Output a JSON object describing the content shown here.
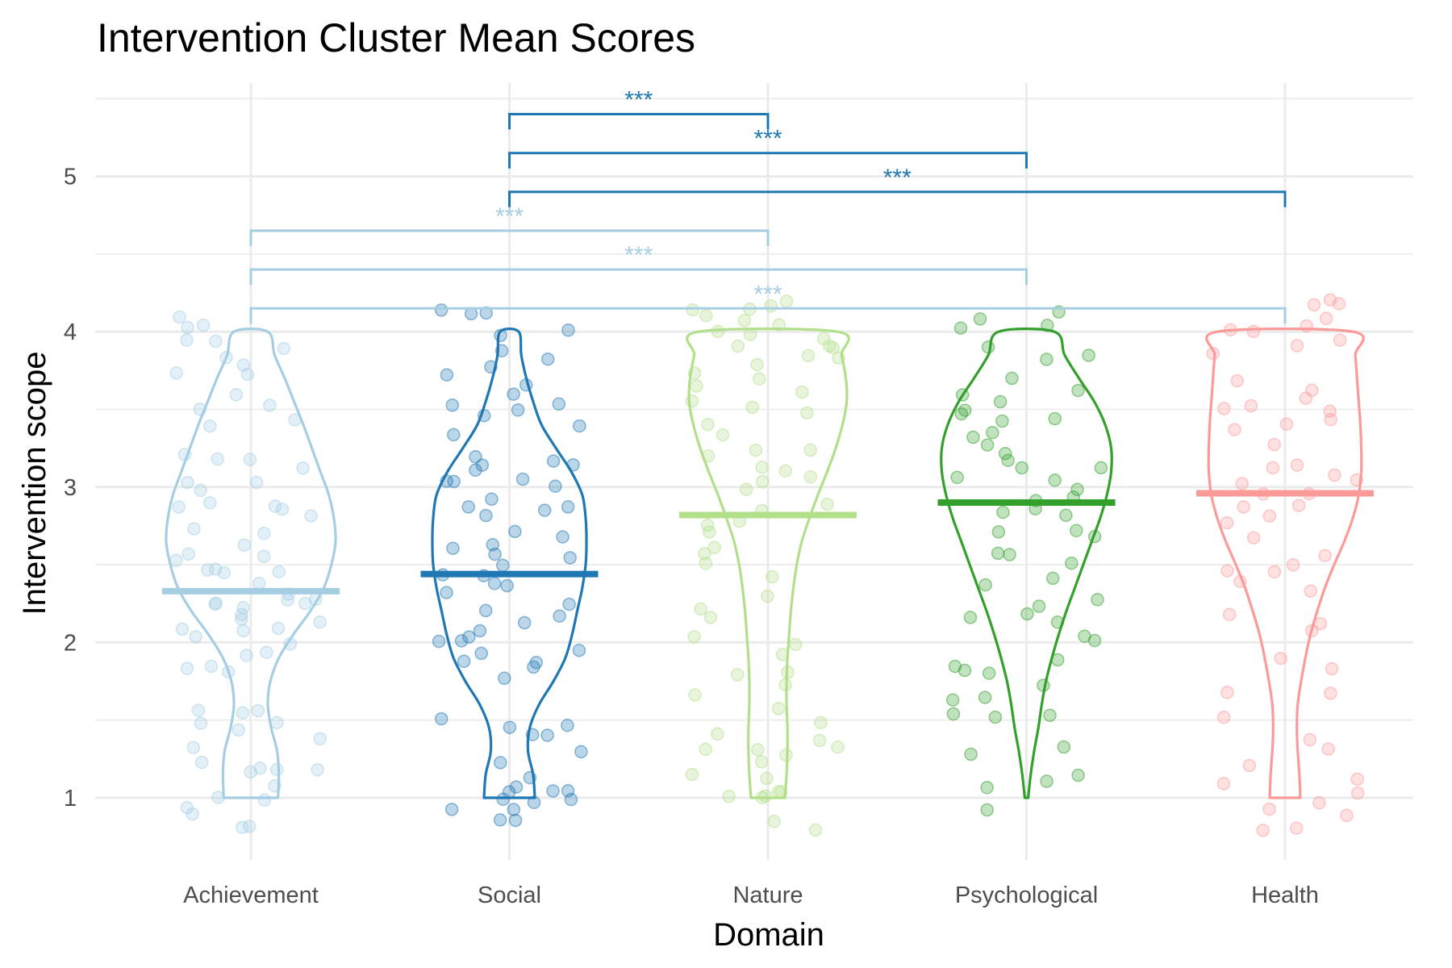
{
  "chart_data": {
    "type": "violin",
    "title": "Intervention Cluster Mean Scores",
    "xlabel": "Domain",
    "ylabel": "Intervention scope",
    "categories": [
      "Achievement",
      "Social",
      "Nature",
      "Psychological",
      "Health"
    ],
    "ylim": [
      0.6,
      5.6
    ],
    "yticks": [
      1,
      2,
      3,
      4,
      5
    ],
    "grid": true,
    "legend": "none",
    "series": [
      {
        "category": "Achievement",
        "color": "#a6cee3",
        "mean": 2.33,
        "point_alpha": 0.3,
        "density": [
          [
            1.0,
            0.32
          ],
          [
            1.15,
            0.33
          ],
          [
            1.3,
            0.31
          ],
          [
            1.45,
            0.24
          ],
          [
            1.6,
            0.2
          ],
          [
            1.75,
            0.23
          ],
          [
            1.9,
            0.33
          ],
          [
            2.05,
            0.5
          ],
          [
            2.2,
            0.7
          ],
          [
            2.35,
            0.86
          ],
          [
            2.5,
            0.95
          ],
          [
            2.65,
            1.0
          ],
          [
            2.8,
            0.98
          ],
          [
            2.95,
            0.92
          ],
          [
            3.1,
            0.82
          ],
          [
            3.25,
            0.72
          ],
          [
            3.4,
            0.62
          ],
          [
            3.55,
            0.51
          ],
          [
            3.7,
            0.4
          ],
          [
            3.85,
            0.28
          ],
          [
            4.0,
            0.2
          ]
        ],
        "points": [
          0.82,
          0.88,
          0.81,
          0.96,
          0.98,
          1.02,
          1.05,
          1.15,
          1.16,
          1.19,
          1.2,
          1.21,
          1.32,
          1.36,
          1.44,
          1.47,
          1.51,
          1.53,
          1.55,
          1.58,
          1.8,
          1.86,
          1.87,
          1.9,
          1.93,
          2.0,
          2.02,
          2.05,
          2.08,
          2.1,
          2.12,
          2.15,
          2.2,
          2.22,
          2.23,
          2.25,
          2.27,
          2.28,
          2.3,
          2.32,
          2.35,
          2.44,
          2.46,
          2.47,
          2.5,
          2.52,
          2.55,
          2.6,
          2.65,
          2.7,
          2.75,
          2.8,
          2.85,
          2.87,
          2.9,
          2.92,
          2.95,
          3.0,
          3.05,
          3.1,
          3.15,
          3.18,
          3.2,
          3.38,
          3.41,
          3.47,
          3.5,
          3.57,
          3.72,
          3.75,
          3.8,
          3.86,
          3.9,
          3.93,
          3.97,
          4.0,
          4.03,
          4.1
        ]
      },
      {
        "category": "Social",
        "color": "#1f78b4",
        "mean": 2.44,
        "point_alpha": 0.3,
        "density": [
          [
            1.0,
            0.3
          ],
          [
            1.15,
            0.28
          ],
          [
            1.3,
            0.22
          ],
          [
            1.45,
            0.24
          ],
          [
            1.6,
            0.35
          ],
          [
            1.75,
            0.52
          ],
          [
            1.9,
            0.66
          ],
          [
            2.05,
            0.74
          ],
          [
            2.2,
            0.8
          ],
          [
            2.35,
            0.86
          ],
          [
            2.5,
            0.9
          ],
          [
            2.65,
            0.91
          ],
          [
            2.8,
            0.9
          ],
          [
            2.95,
            0.86
          ],
          [
            3.1,
            0.73
          ],
          [
            3.25,
            0.55
          ],
          [
            3.4,
            0.38
          ],
          [
            3.55,
            0.28
          ],
          [
            3.7,
            0.2
          ],
          [
            3.85,
            0.14
          ],
          [
            4.0,
            0.11
          ]
        ],
        "points": [
          0.85,
          0.88,
          0.92,
          0.95,
          0.97,
          1.0,
          1.02,
          1.04,
          1.05,
          1.07,
          1.1,
          1.15,
          1.2,
          1.3,
          1.4,
          1.42,
          1.45,
          1.48,
          1.5,
          1.8,
          1.82,
          1.85,
          1.88,
          1.9,
          1.95,
          2.0,
          2.02,
          2.05,
          2.1,
          2.12,
          2.15,
          2.2,
          2.25,
          2.3,
          2.35,
          2.38,
          2.4,
          2.45,
          2.5,
          2.52,
          2.55,
          2.6,
          2.62,
          2.65,
          2.7,
          2.8,
          2.85,
          2.88,
          2.9,
          2.95,
          3.0,
          3.02,
          3.05,
          3.08,
          3.1,
          3.12,
          3.15,
          3.18,
          3.2,
          3.35,
          3.4,
          3.45,
          3.5,
          3.52,
          3.55,
          3.6,
          3.65,
          3.7,
          3.8,
          3.85,
          3.9,
          3.95,
          4.0,
          4.1,
          4.13,
          4.15
        ]
      },
      {
        "category": "Nature",
        "color": "#b2df8a",
        "mean": 2.82,
        "point_alpha": 0.3,
        "density": [
          [
            1.0,
            0.2
          ],
          [
            1.15,
            0.22
          ],
          [
            1.3,
            0.23
          ],
          [
            1.45,
            0.23
          ],
          [
            1.6,
            0.22
          ],
          [
            1.75,
            0.22
          ],
          [
            1.9,
            0.23
          ],
          [
            2.05,
            0.25
          ],
          [
            2.2,
            0.27
          ],
          [
            2.35,
            0.3
          ],
          [
            2.5,
            0.34
          ],
          [
            2.65,
            0.4
          ],
          [
            2.8,
            0.49
          ],
          [
            2.95,
            0.59
          ],
          [
            3.1,
            0.7
          ],
          [
            3.25,
            0.8
          ],
          [
            3.4,
            0.88
          ],
          [
            3.55,
            0.93
          ],
          [
            3.7,
            0.92
          ],
          [
            3.85,
            0.87
          ],
          [
            4.0,
            0.82
          ]
        ],
        "points": [
          0.8,
          0.82,
          0.98,
          1.0,
          1.01,
          1.02,
          1.05,
          1.1,
          1.15,
          1.2,
          1.25,
          1.3,
          1.32,
          1.35,
          1.38,
          1.4,
          1.5,
          1.6,
          1.65,
          1.7,
          1.8,
          1.82,
          1.9,
          2.0,
          2.02,
          2.15,
          2.2,
          2.3,
          2.45,
          2.5,
          2.55,
          2.6,
          2.7,
          2.75,
          2.8,
          2.85,
          2.9,
          3.0,
          3.02,
          3.05,
          3.1,
          3.15,
          3.2,
          3.22,
          3.25,
          3.35,
          3.4,
          3.45,
          3.5,
          3.55,
          3.6,
          3.65,
          3.7,
          3.75,
          3.8,
          3.82,
          3.85,
          3.88,
          3.9,
          3.92,
          3.95,
          4.0,
          4.02,
          4.05,
          4.08,
          4.1,
          4.12,
          4.15,
          4.17,
          4.18
        ]
      },
      {
        "category": "Psychological",
        "color": "#33a02c",
        "mean": 2.9,
        "point_alpha": 0.3,
        "density": [
          [
            1.0,
            0.02
          ],
          [
            1.15,
            0.05
          ],
          [
            1.3,
            0.09
          ],
          [
            1.45,
            0.14
          ],
          [
            1.6,
            0.18
          ],
          [
            1.75,
            0.23
          ],
          [
            1.9,
            0.3
          ],
          [
            2.05,
            0.38
          ],
          [
            2.2,
            0.47
          ],
          [
            2.35,
            0.57
          ],
          [
            2.5,
            0.67
          ],
          [
            2.65,
            0.77
          ],
          [
            2.8,
            0.87
          ],
          [
            2.95,
            0.95
          ],
          [
            3.1,
            1.0
          ],
          [
            3.25,
            1.0
          ],
          [
            3.4,
            0.93
          ],
          [
            3.55,
            0.8
          ],
          [
            3.7,
            0.62
          ],
          [
            3.85,
            0.45
          ],
          [
            4.0,
            0.33
          ]
        ],
        "points": [
          0.95,
          1.08,
          1.1,
          1.12,
          1.25,
          1.35,
          1.5,
          1.52,
          1.55,
          1.6,
          1.65,
          1.7,
          1.8,
          1.82,
          1.85,
          1.9,
          2.0,
          2.05,
          2.1,
          2.15,
          2.2,
          2.25,
          2.3,
          2.35,
          2.4,
          2.5,
          2.55,
          2.6,
          2.65,
          2.7,
          2.75,
          2.8,
          2.85,
          2.88,
          2.9,
          2.95,
          3.0,
          3.05,
          3.08,
          3.1,
          3.12,
          3.15,
          3.2,
          3.25,
          3.3,
          3.35,
          3.4,
          3.42,
          3.45,
          3.5,
          3.55,
          3.6,
          3.65,
          3.7,
          3.8,
          3.85,
          3.9,
          4.0,
          4.05,
          4.1,
          4.15
        ]
      },
      {
        "category": "Health",
        "color": "#fb9a99",
        "mean": 2.96,
        "point_alpha": 0.3,
        "density": [
          [
            1.0,
            0.18
          ],
          [
            1.15,
            0.17
          ],
          [
            1.3,
            0.15
          ],
          [
            1.45,
            0.14
          ],
          [
            1.6,
            0.15
          ],
          [
            1.75,
            0.19
          ],
          [
            1.9,
            0.24
          ],
          [
            2.05,
            0.3
          ],
          [
            2.2,
            0.38
          ],
          [
            2.35,
            0.47
          ],
          [
            2.5,
            0.58
          ],
          [
            2.65,
            0.7
          ],
          [
            2.8,
            0.8
          ],
          [
            2.95,
            0.87
          ],
          [
            3.1,
            0.9
          ],
          [
            3.25,
            0.9
          ],
          [
            3.4,
            0.89
          ],
          [
            3.55,
            0.87
          ],
          [
            3.7,
            0.85
          ],
          [
            3.85,
            0.83
          ],
          [
            4.0,
            0.8
          ]
        ],
        "points": [
          0.8,
          0.82,
          0.9,
          0.95,
          0.98,
          1.0,
          1.1,
          1.15,
          1.18,
          1.3,
          1.4,
          1.5,
          1.65,
          1.7,
          1.85,
          1.9,
          2.05,
          2.1,
          2.2,
          2.3,
          2.4,
          2.45,
          2.48,
          2.5,
          2.55,
          2.65,
          2.75,
          2.8,
          2.85,
          2.9,
          2.95,
          2.98,
          3.0,
          3.02,
          3.05,
          3.1,
          3.15,
          3.3,
          3.35,
          3.4,
          3.45,
          3.5,
          3.52,
          3.55,
          3.6,
          3.65,
          3.7,
          3.85,
          3.9,
          3.95,
          3.98,
          4.0,
          4.05,
          4.1,
          4.15,
          4.18,
          4.2
        ]
      }
    ],
    "comparisons": [
      {
        "from": "Social",
        "to": "Nature",
        "y": 5.4,
        "label": "***",
        "color": "#1f78b4"
      },
      {
        "from": "Social",
        "to": "Psychological",
        "y": 5.15,
        "label": "***",
        "color": "#1f78b4"
      },
      {
        "from": "Social",
        "to": "Health",
        "y": 4.9,
        "label": "***",
        "color": "#1f78b4"
      },
      {
        "from": "Achievement",
        "to": "Nature",
        "y": 4.65,
        "label": "***",
        "color": "#a6cee3"
      },
      {
        "from": "Achievement",
        "to": "Psychological",
        "y": 4.4,
        "label": "***",
        "color": "#a6cee3"
      },
      {
        "from": "Achievement",
        "to": "Health",
        "y": 4.15,
        "label": "***",
        "color": "#a6cee3"
      }
    ]
  }
}
